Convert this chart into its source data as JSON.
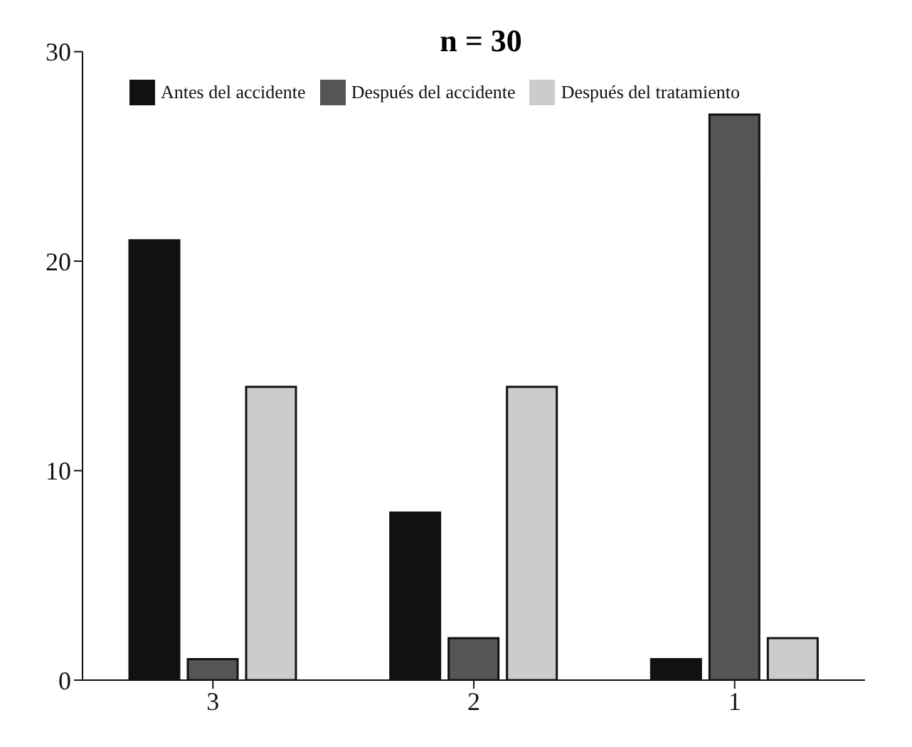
{
  "chart_data": {
    "type": "bar",
    "title": "n = 30",
    "categories": [
      "3",
      "2",
      "1"
    ],
    "series": [
      {
        "name": "Antes del accidente",
        "color": "#111111",
        "values": [
          21,
          8,
          1
        ]
      },
      {
        "name": "Después del accidente",
        "color": "#555555",
        "values": [
          1,
          2,
          27
        ]
      },
      {
        "name": "Después del tratamiento",
        "color": "#cccccc",
        "values": [
          14,
          14,
          2
        ]
      }
    ],
    "ylim": [
      0,
      30
    ],
    "yticks": [
      0,
      10,
      20,
      30
    ],
    "grid": false,
    "legend": "top"
  }
}
